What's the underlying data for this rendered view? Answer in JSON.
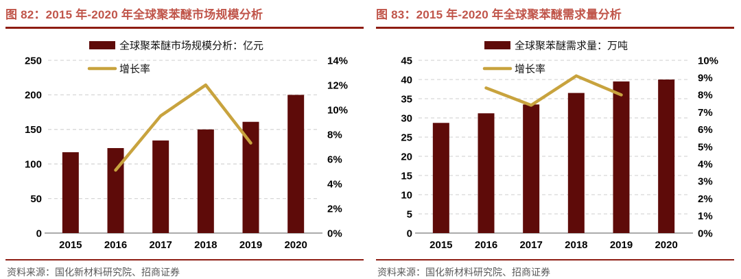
{
  "colors": {
    "bar": "#5e0b09",
    "line": "#c8a33e",
    "title_text": "#c0554a",
    "rule": "#8e1c12",
    "source_text": "#595959",
    "grid": "#d7d7d7",
    "axis_line": "#8f8f8f",
    "tick_text": "#000000"
  },
  "chart_data": [
    {
      "type": "bar+line",
      "figure_label": "图 82：2015 年-2020 年全球聚苯醚市场规模分析",
      "source": "资料来源：国化新材料研究院、招商证券",
      "categories": [
        "2015",
        "2016",
        "2017",
        "2018",
        "2019",
        "2020"
      ],
      "series": [
        {
          "name": "全球聚苯醚市场规模分析：亿元",
          "type": "bar",
          "axis": "left",
          "values": [
            117,
            123,
            134,
            150,
            161,
            200
          ]
        },
        {
          "name": "增长率",
          "type": "line",
          "axis": "right",
          "values": [
            null,
            5.1,
            9.5,
            12.0,
            7.3,
            null
          ]
        }
      ],
      "left_axis": {
        "min": 0,
        "max": 250,
        "step": 50,
        "labels": [
          "0",
          "50",
          "100",
          "150",
          "200",
          "250"
        ]
      },
      "right_axis": {
        "min": 0,
        "max": 14,
        "step": 2,
        "labels": [
          "0%",
          "2%",
          "4%",
          "6%",
          "8%",
          "10%",
          "12%",
          "14%"
        ]
      },
      "legend_position": "top",
      "grid": "horizontal-dashed"
    },
    {
      "type": "bar+line",
      "figure_label": "图 83：2015 年-2020 年全球聚苯醚需求量分析",
      "source": "资料来源：国化新材料研究院、招商证券",
      "categories": [
        "2015",
        "2016",
        "2017",
        "2018",
        "2019",
        "2020"
      ],
      "series": [
        {
          "name": "全球聚苯醚需求量：万吨",
          "type": "bar",
          "axis": "left",
          "values": [
            28.7,
            31.2,
            33.5,
            36.5,
            39.5,
            40.0
          ]
        },
        {
          "name": "增长率",
          "type": "line",
          "axis": "right",
          "values": [
            null,
            8.4,
            7.4,
            9.1,
            8.0,
            null
          ]
        }
      ],
      "left_axis": {
        "min": 0,
        "max": 45,
        "step": 5,
        "labels": [
          "0",
          "5",
          "10",
          "15",
          "20",
          "25",
          "30",
          "35",
          "40",
          "45"
        ]
      },
      "right_axis": {
        "min": 0,
        "max": 10,
        "step": 1,
        "labels": [
          "0%",
          "1%",
          "2%",
          "3%",
          "4%",
          "5%",
          "6%",
          "7%",
          "8%",
          "9%",
          "10%"
        ]
      },
      "legend_position": "top",
      "grid": "horizontal-dashed"
    }
  ]
}
